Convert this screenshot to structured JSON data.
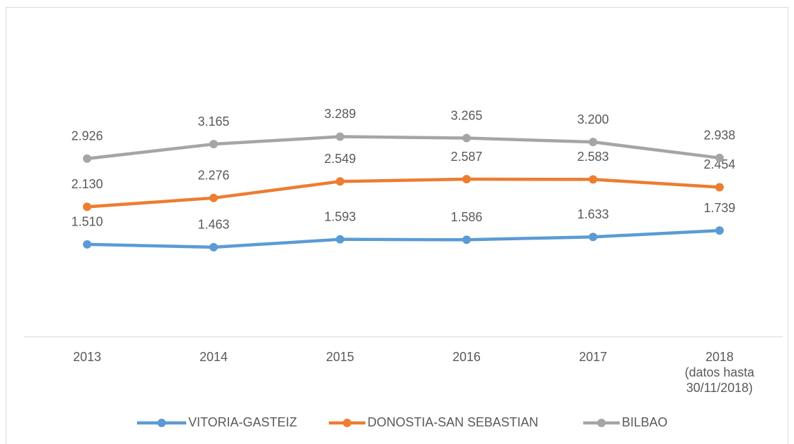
{
  "chart_data": {
    "type": "line",
    "categories": [
      "2013",
      "2014",
      "2015",
      "2016",
      "2017",
      "2018\n(datos hasta\n30/11/2018)"
    ],
    "series": [
      {
        "name": "VITORIA-GASTEIZ",
        "color": "#5b9bd5",
        "values": [
          1510,
          1463,
          1593,
          1586,
          1633,
          1739
        ],
        "value_labels": [
          "1.510",
          "1.463",
          "1.593",
          "1.586",
          "1.633",
          "1.739"
        ]
      },
      {
        "name": "DONOSTIA-SAN SEBASTIAN",
        "color": "#ed7d31",
        "values": [
          2130,
          2276,
          2549,
          2587,
          2583,
          2454
        ],
        "value_labels": [
          "2.130",
          "2.276",
          "2.549",
          "2.587",
          "2.583",
          "2.454"
        ]
      },
      {
        "name": "BILBAO",
        "color": "#a5a5a5",
        "values": [
          2926,
          3165,
          3289,
          3265,
          3200,
          2938
        ],
        "value_labels": [
          "2.926",
          "3.165",
          "3.289",
          "3.265",
          "3.200",
          "2.938"
        ]
      }
    ],
    "ylim": [
      0,
      5000
    ],
    "legend": "bottom"
  }
}
